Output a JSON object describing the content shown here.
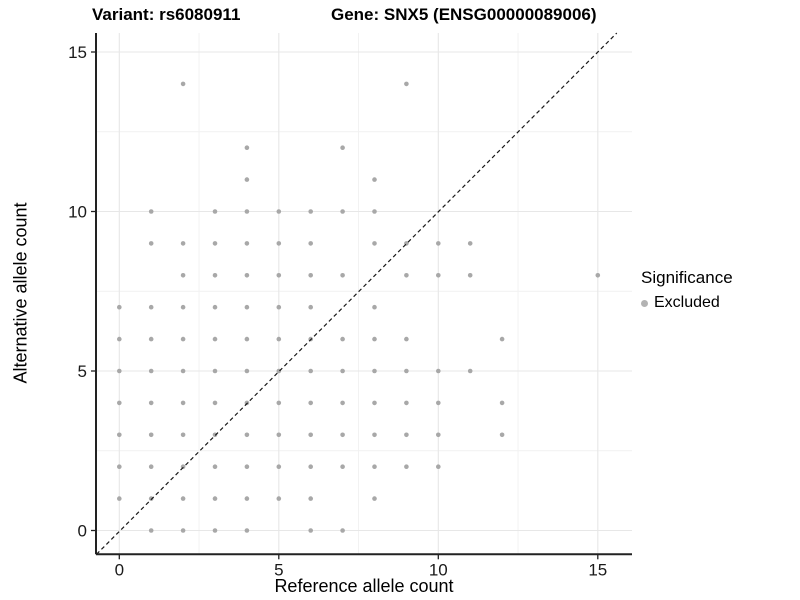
{
  "title": {
    "variant": "Variant: rs6080911",
    "gene": "Gene: SNX5 (ENSG00000089006)"
  },
  "chart_data": {
    "type": "scatter",
    "title": "Variant: rs6080911   Gene: SNX5 (ENSG00000089006)",
    "xlabel": "Reference allele count",
    "ylabel": "Alternative allele count",
    "xlim": [
      -0.75,
      16
    ],
    "ylim": [
      -0.75,
      15.6
    ],
    "x_ticks": [
      0,
      5,
      10,
      15
    ],
    "y_ticks": [
      0,
      5,
      10,
      15
    ],
    "x_minor": [
      2.5,
      7.5,
      12.5
    ],
    "y_minor": [
      2.5,
      7.5,
      12.5
    ],
    "grid": true,
    "identity_line": {
      "equation": "y = x",
      "style": "dashed",
      "color": "#1a1a1a"
    },
    "point_color": "#a8a8a8",
    "point_radius": 2.3,
    "legend": {
      "position": "right",
      "title": "Significance",
      "items": [
        {
          "label": "Excluded",
          "color": "#b3b3b3"
        }
      ]
    },
    "points": [
      [
        2,
        14
      ],
      [
        9,
        14
      ],
      [
        4,
        12
      ],
      [
        7,
        12
      ],
      [
        4,
        11
      ],
      [
        8,
        11
      ],
      [
        1,
        10
      ],
      [
        3,
        10
      ],
      [
        4,
        10
      ],
      [
        5,
        10
      ],
      [
        6,
        10
      ],
      [
        7,
        10
      ],
      [
        8,
        10
      ],
      [
        1,
        9
      ],
      [
        2,
        9
      ],
      [
        3,
        9
      ],
      [
        4,
        9
      ],
      [
        5,
        9
      ],
      [
        6,
        9
      ],
      [
        8,
        9
      ],
      [
        9,
        9
      ],
      [
        10,
        9
      ],
      [
        11,
        9
      ],
      [
        2,
        8
      ],
      [
        3,
        8
      ],
      [
        4,
        8
      ],
      [
        5,
        8
      ],
      [
        6,
        8
      ],
      [
        7,
        8
      ],
      [
        9,
        8
      ],
      [
        10,
        8
      ],
      [
        11,
        8
      ],
      [
        15,
        8
      ],
      [
        0,
        7
      ],
      [
        1,
        7
      ],
      [
        2,
        7
      ],
      [
        3,
        7
      ],
      [
        4,
        7
      ],
      [
        5,
        7
      ],
      [
        6,
        7
      ],
      [
        8,
        7
      ],
      [
        0,
        6
      ],
      [
        1,
        6
      ],
      [
        2,
        6
      ],
      [
        3,
        6
      ],
      [
        4,
        6
      ],
      [
        5,
        6
      ],
      [
        6,
        6
      ],
      [
        7,
        6
      ],
      [
        8,
        6
      ],
      [
        9,
        6
      ],
      [
        12,
        6
      ],
      [
        0,
        5
      ],
      [
        1,
        5
      ],
      [
        2,
        5
      ],
      [
        3,
        5
      ],
      [
        4,
        5
      ],
      [
        5,
        5
      ],
      [
        6,
        5
      ],
      [
        7,
        5
      ],
      [
        8,
        5
      ],
      [
        9,
        5
      ],
      [
        10,
        5
      ],
      [
        11,
        5
      ],
      [
        0,
        4
      ],
      [
        1,
        4
      ],
      [
        2,
        4
      ],
      [
        3,
        4
      ],
      [
        4,
        4
      ],
      [
        5,
        4
      ],
      [
        6,
        4
      ],
      [
        7,
        4
      ],
      [
        8,
        4
      ],
      [
        9,
        4
      ],
      [
        10,
        4
      ],
      [
        12,
        4
      ],
      [
        0,
        3
      ],
      [
        1,
        3
      ],
      [
        2,
        3
      ],
      [
        3,
        3
      ],
      [
        4,
        3
      ],
      [
        5,
        3
      ],
      [
        6,
        3
      ],
      [
        7,
        3
      ],
      [
        8,
        3
      ],
      [
        9,
        3
      ],
      [
        10,
        3
      ],
      [
        12,
        3
      ],
      [
        0,
        2
      ],
      [
        1,
        2
      ],
      [
        2,
        2
      ],
      [
        3,
        2
      ],
      [
        4,
        2
      ],
      [
        5,
        2
      ],
      [
        6,
        2
      ],
      [
        7,
        2
      ],
      [
        8,
        2
      ],
      [
        9,
        2
      ],
      [
        10,
        2
      ],
      [
        0,
        1
      ],
      [
        1,
        1
      ],
      [
        2,
        1
      ],
      [
        3,
        1
      ],
      [
        4,
        1
      ],
      [
        5,
        1
      ],
      [
        6,
        1
      ],
      [
        8,
        1
      ],
      [
        1,
        0
      ],
      [
        2,
        0
      ],
      [
        3,
        0
      ],
      [
        4,
        0
      ],
      [
        6,
        0
      ],
      [
        7,
        0
      ]
    ],
    "colors": {
      "grid_major": "#e7e7e7",
      "grid_minor": "#f1f1f1",
      "axis_line": "#222222",
      "tick_label": "#1a1a1a"
    }
  }
}
